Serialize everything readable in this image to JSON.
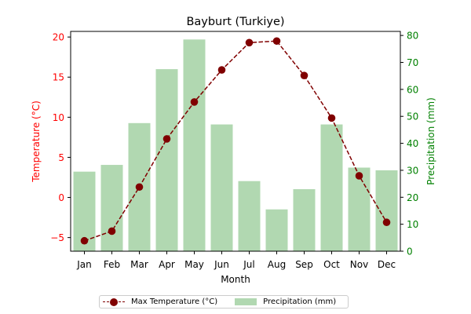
{
  "chart_data": {
    "type": "bar+line",
    "title": "Bayburt (Turkiye)",
    "xlabel": "Month",
    "categories": [
      "Jan",
      "Feb",
      "Mar",
      "Apr",
      "May",
      "Jun",
      "Jul",
      "Aug",
      "Sep",
      "Oct",
      "Nov",
      "Dec"
    ],
    "y_left": {
      "label": "Temperature (°C)",
      "color": "#ff0000",
      "ylim": [
        -6.7,
        20.7
      ],
      "ticks": [
        -5,
        0,
        5,
        10,
        15,
        20
      ],
      "tick_labels": [
        "−5",
        "0",
        "5",
        "10",
        "15",
        "20"
      ]
    },
    "y_right": {
      "label": "Precipitation (mm)",
      "color": "#008000",
      "ylim": [
        0,
        81.5
      ],
      "ticks": [
        0,
        10,
        20,
        30,
        40,
        50,
        60,
        70,
        80
      ],
      "tick_labels": [
        "0",
        "10",
        "20",
        "30",
        "40",
        "50",
        "60",
        "70",
        "80"
      ]
    },
    "series": [
      {
        "name": "Max Temperature (°C)",
        "type": "line",
        "axis": "left",
        "color": "#800000",
        "style": "dashed",
        "marker": "circle",
        "values": [
          -5.4,
          -4.2,
          1.3,
          7.3,
          11.9,
          15.9,
          19.3,
          19.5,
          15.2,
          9.9,
          2.7,
          -3.1
        ]
      },
      {
        "name": "Precipitation (mm)",
        "type": "bar",
        "axis": "right",
        "color": "#b1d8b1",
        "values": [
          29.5,
          32,
          47.5,
          67.5,
          78.5,
          47,
          26,
          15.5,
          23,
          47,
          31,
          30
        ]
      }
    ],
    "legend": {
      "placement": "bottom-center",
      "ncol": 2
    }
  }
}
